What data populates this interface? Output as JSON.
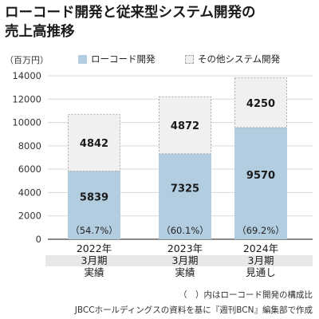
{
  "title": "ローコード開発と従来型システム開発の\n売上高推移",
  "unit_label": "（百万円）",
  "legend": [
    {
      "label": "ローコード開発",
      "color": "#b3cde0"
    },
    {
      "label": "その他システム開発",
      "color": "#f0f0f0"
    }
  ],
  "footnotes": [
    "（　）内はローコード開発の構成比",
    "JBCCホールディングスの資料を基に『週刊BCN』編集部で作成"
  ],
  "chart_data": {
    "type": "bar",
    "stacked": true,
    "categories": [
      "2022年\n3月期\n実績",
      "2023年\n3月期\n実績",
      "2024年\n3月期\n見通し"
    ],
    "series": [
      {
        "name": "ローコード開発",
        "values": [
          5839,
          7325,
          9570
        ],
        "shares": [
          "（54.7%）",
          "（60.1%）",
          "（69.2%）"
        ],
        "color": "#b3cde0"
      },
      {
        "name": "その他システム開発",
        "values": [
          4842,
          4872,
          4250
        ],
        "color": "#f0f0f0"
      }
    ],
    "ylim": [
      0,
      14000
    ],
    "yticks": [
      0,
      2000,
      4000,
      6000,
      8000,
      10000,
      12000,
      14000
    ],
    "grid": true,
    "legend_position": "top"
  }
}
